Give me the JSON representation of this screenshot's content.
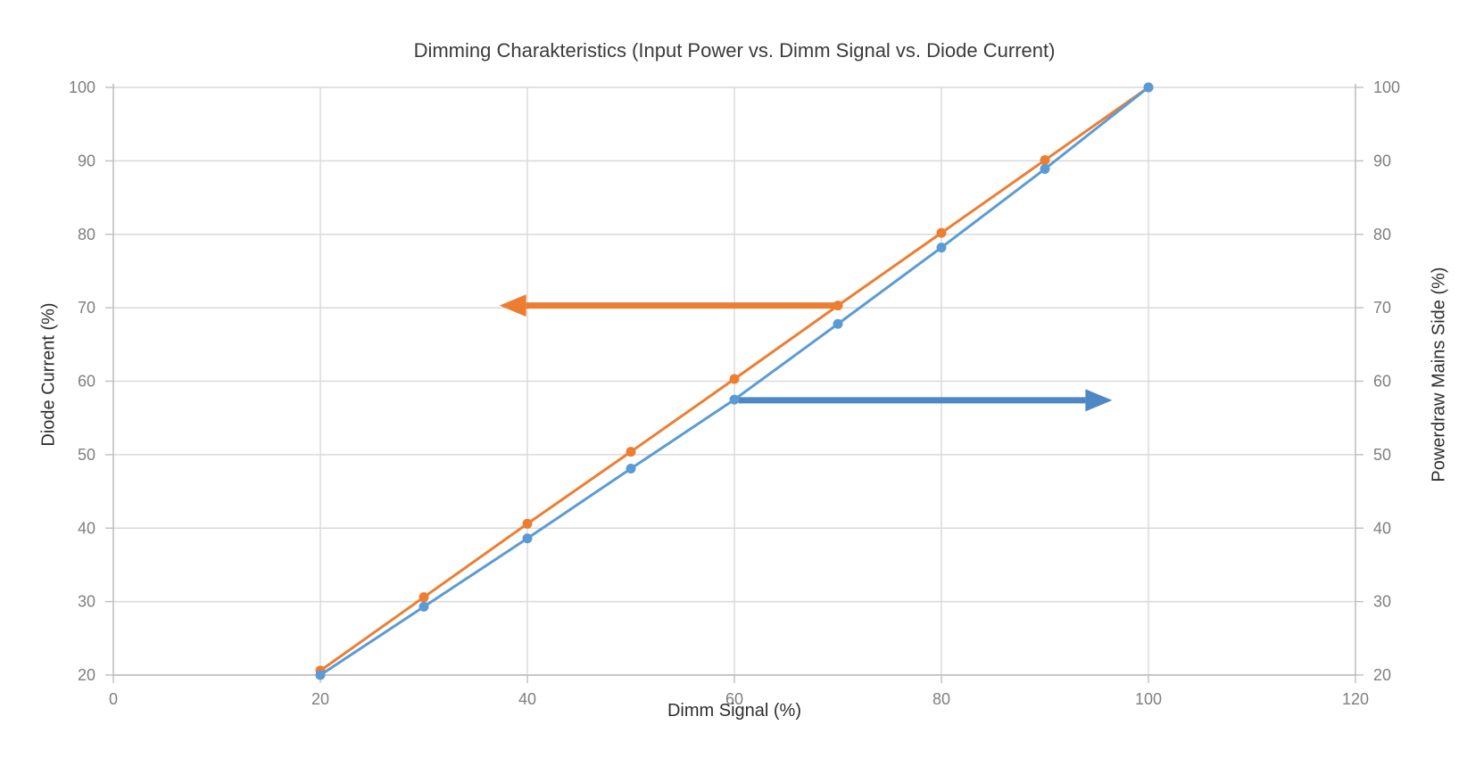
{
  "chart_data": {
    "type": "line",
    "title": "Dimming Charakteristics (Input Power vs. Dimm Signal vs. Diode Current)",
    "xlabel": "Dimm Signal (%)",
    "ylabel_left": "Diode Current (%)",
    "ylabel_right": "Powerdraw Mains Side (%)",
    "xlim": [
      0,
      120
    ],
    "ylim_left": [
      20,
      100
    ],
    "ylim_right": [
      20,
      100
    ],
    "x_ticks": [
      0,
      20,
      40,
      60,
      80,
      100,
      120
    ],
    "y_ticks_left": [
      20,
      30,
      40,
      50,
      60,
      70,
      80,
      90,
      100
    ],
    "y_ticks_right": [
      20,
      30,
      40,
      50,
      60,
      70,
      80,
      90,
      100
    ],
    "grid": true,
    "legend": "none",
    "x": [
      20,
      30,
      40,
      50,
      60,
      70,
      80,
      90,
      100
    ],
    "series": [
      {
        "name": "Diode Current",
        "axis": "left",
        "color": "#ED7D31",
        "marker": "circle",
        "values": [
          20.6,
          30.6,
          40.6,
          50.4,
          60.3,
          70.3,
          80.2,
          90.1,
          100
        ]
      },
      {
        "name": "Powerdraw Mains Side",
        "axis": "right",
        "color": "#5B9BD5",
        "marker": "circle",
        "values": [
          20.0,
          29.3,
          38.6,
          48.1,
          57.5,
          67.8,
          78.2,
          88.9,
          100
        ]
      }
    ],
    "annotations": [
      {
        "type": "arrow",
        "name": "left-axis-arrow",
        "color": "#ED7D31",
        "from": [
          70,
          70.3
        ],
        "to": [
          37.3,
          70.3
        ],
        "direction": "left"
      },
      {
        "type": "arrow",
        "name": "right-axis-arrow",
        "color": "#4E87C6",
        "from": [
          60.4,
          57.4
        ],
        "to": [
          96.5,
          57.4
        ],
        "direction": "right"
      }
    ]
  },
  "colors": {
    "gridline": "#D9D9D9",
    "axis_line": "#BFBFBF",
    "tick_label": "#7f7f7f",
    "title_text": "#3b3b3b",
    "axis_title_text": "#2e2e2e",
    "background": "#ffffff"
  }
}
